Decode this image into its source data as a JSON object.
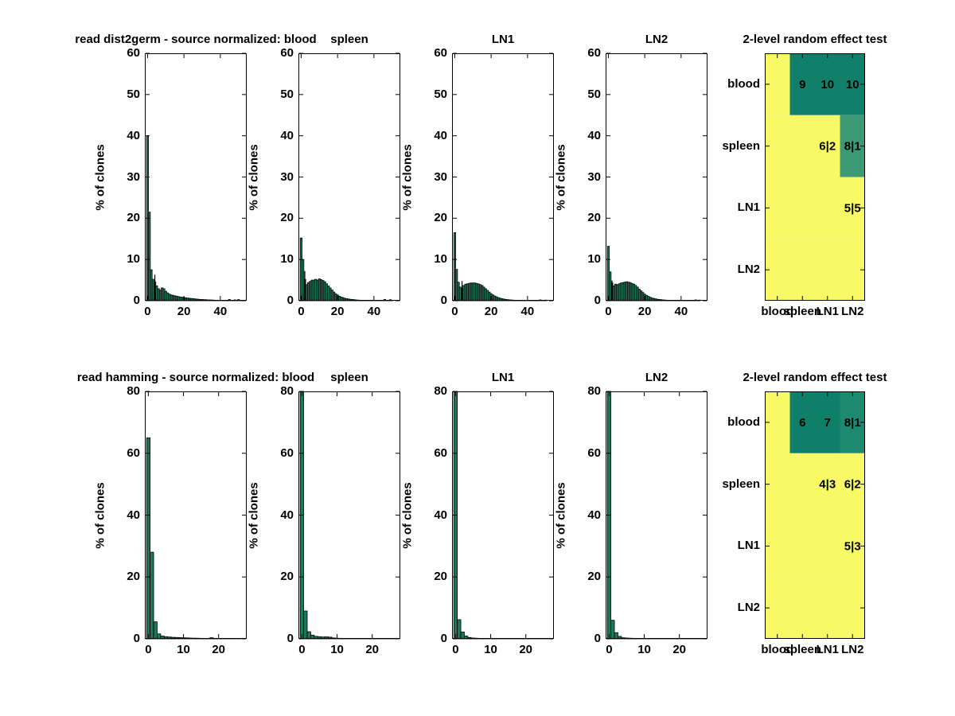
{
  "figure": {
    "background": "#ffffff",
    "bar_fill": "#1e7758",
    "bar_edge": "#000000",
    "axis_color": "#000000",
    "text_color": "#000000"
  },
  "chart_data": [
    {
      "type": "bar",
      "panel": "row1-blood",
      "title": "read  dist2germ - source normalized: blood",
      "ylabel": "% of clones",
      "ylim": [
        0,
        60
      ],
      "yticks": [
        0,
        10,
        20,
        30,
        40,
        50,
        60
      ],
      "xlim": [
        -1.5,
        54.5
      ],
      "xticks": [
        0,
        20,
        40
      ],
      "bin_width": 1,
      "grid": false,
      "values": [
        40,
        21.5,
        7.5,
        5.2,
        4.6,
        3.6,
        2.9,
        2.6,
        3.1,
        2.9,
        2.3,
        1.9,
        1.6,
        1.4,
        1.3,
        1.2,
        1.1,
        1.0,
        0.9,
        0.85,
        0.8,
        0.7,
        0.65,
        0.6,
        0.55,
        0.5,
        0.45,
        0.4,
        0.35,
        0.3,
        0.3,
        0.25,
        0.25,
        0.2,
        0.2,
        0.18,
        0.15,
        0.13,
        0.12,
        0.1,
        0.1,
        0.1,
        0.08,
        0.06,
        0.05,
        0.3,
        0.05,
        0.04,
        0.2,
        0.04,
        0.28,
        0.03,
        0.05
      ],
      "spike": {
        "x": 4,
        "v": 6.3
      }
    },
    {
      "type": "bar",
      "panel": "row1-spleen",
      "title": "spleen",
      "ylabel": "% of clones",
      "ylim": [
        0,
        60
      ],
      "yticks": [
        0,
        10,
        20,
        30,
        40,
        50,
        60
      ],
      "xlim": [
        -1.5,
        54.5
      ],
      "xticks": [
        0,
        20,
        40
      ],
      "bin_width": 1,
      "grid": false,
      "values": [
        15.2,
        10.0,
        5.2,
        3.9,
        4.4,
        4.7,
        5.0,
        5.0,
        5.2,
        5.0,
        5.3,
        5.1,
        4.9,
        4.6,
        4.1,
        3.6,
        3.1,
        2.6,
        2.1,
        1.7,
        1.4,
        1.1,
        0.9,
        0.75,
        0.6,
        0.5,
        0.42,
        0.35,
        0.3,
        0.25,
        0.2,
        0.16,
        0.13,
        0.11,
        0.1,
        0.09,
        0.08,
        0.07,
        0.06,
        0.06,
        0.05,
        0.05,
        0.05,
        0.04,
        0.04,
        0.04,
        0.3,
        0.04,
        0.04,
        0.25,
        0.04
      ],
      "spike": {
        "x": 2,
        "v": 7.2
      }
    },
    {
      "type": "bar",
      "panel": "row1-LN1",
      "title": "LN1",
      "ylabel": "% of clones",
      "ylim": [
        0,
        60
      ],
      "yticks": [
        0,
        10,
        20,
        30,
        40,
        50,
        60
      ],
      "xlim": [
        -1.5,
        54.5
      ],
      "xticks": [
        0,
        20,
        40
      ],
      "bin_width": 1,
      "grid": false,
      "values": [
        16.5,
        7.6,
        4.5,
        3.3,
        3.0,
        3.7,
        4.0,
        4.1,
        4.2,
        4.3,
        4.3,
        4.3,
        4.2,
        4.1,
        3.9,
        3.7,
        3.3,
        2.9,
        2.5,
        2.1,
        1.7,
        1.4,
        1.15,
        0.95,
        0.75,
        0.6,
        0.5,
        0.4,
        0.32,
        0.26,
        0.22,
        0.18,
        0.15,
        0.12,
        0.1,
        0.1,
        0.08,
        0.07,
        0.06,
        0.05,
        0.05,
        0.04,
        0.04,
        0.03,
        0.03,
        0.03,
        0.03,
        0.2,
        0.03,
        0.03,
        0.15
      ],
      "spike": {
        "x": 4,
        "v": 4.8
      }
    },
    {
      "type": "bar",
      "panel": "row1-LN2",
      "title": "LN2",
      "ylabel": "% of clones",
      "ylim": [
        0,
        60
      ],
      "yticks": [
        0,
        10,
        20,
        30,
        40,
        50,
        60
      ],
      "xlim": [
        -1.5,
        54.5
      ],
      "xticks": [
        0,
        20,
        40
      ],
      "bin_width": 1,
      "grid": false,
      "values": [
        13.2,
        7.0,
        4.3,
        3.6,
        4.0,
        3.9,
        4.1,
        4.3,
        4.4,
        4.5,
        4.6,
        4.5,
        4.4,
        4.2,
        4.0,
        3.7,
        3.3,
        2.8,
        2.4,
        2.0,
        1.6,
        1.3,
        1.05,
        0.85,
        0.65,
        0.55,
        0.45,
        0.35,
        0.3,
        0.25,
        0.2,
        0.16,
        0.13,
        0.1,
        0.09,
        0.08,
        0.06,
        0.06,
        0.05,
        0.04,
        0.04,
        0.04,
        0.03,
        0.03,
        0.03,
        0.03,
        0.03,
        0.03,
        0.2,
        0.03,
        0.15
      ],
      "spike": {
        "x": 2,
        "v": 4.9
      }
    },
    {
      "type": "heatmap",
      "panel": "row1-test",
      "title": "2-level random effect test",
      "row_labels": [
        "blood",
        "spleen",
        "LN1",
        "LN2"
      ],
      "col_labels": [
        "blood",
        "spleen",
        "LN1",
        "LN2"
      ],
      "palette": {
        "y": "#f7f966",
        "t": "#10806a",
        "m": "#3e9a75",
        "t2": "#10806a"
      },
      "cell_colors": [
        [
          "y",
          "t",
          "t",
          "t"
        ],
        [
          "y",
          "y",
          "y",
          "m"
        ],
        [
          "y",
          "y",
          "y",
          "y"
        ],
        [
          "y",
          "y",
          "y",
          "y"
        ]
      ],
      "cell_text": [
        [
          "",
          "9",
          "10",
          "10"
        ],
        [
          "",
          "",
          "6|2",
          "8|1"
        ],
        [
          "",
          "",
          "",
          "5|5"
        ],
        [
          "",
          "",
          "",
          ""
        ]
      ]
    },
    {
      "type": "bar",
      "panel": "row2-blood",
      "title": "read hamming - source normalized: blood",
      "ylabel": "% of clones",
      "ylim": [
        0,
        80
      ],
      "yticks": [
        0,
        20,
        40,
        60,
        80
      ],
      "xlim": [
        -1,
        28
      ],
      "xticks": [
        0,
        10,
        20
      ],
      "bin_width": 1,
      "grid": false,
      "values": [
        65,
        28,
        5.5,
        1.6,
        0.9,
        0.7,
        0.6,
        0.5,
        0.45,
        0.4,
        0.35,
        0.3,
        0.25,
        0.22,
        0.2,
        0.16,
        0.13,
        0.1,
        0.35,
        0.1,
        0.07,
        0.05,
        0.05,
        0.04,
        0.03,
        0.03,
        0.02
      ]
    },
    {
      "type": "bar",
      "panel": "row2-spleen",
      "title": "spleen",
      "ylabel": "% of clones",
      "ylim": [
        0,
        80
      ],
      "yticks": [
        0,
        20,
        40,
        60,
        80
      ],
      "xlim": [
        -1,
        28
      ],
      "xticks": [
        0,
        10,
        20
      ],
      "bin_width": 1,
      "grid": false,
      "values": [
        80,
        9,
        2.3,
        1.2,
        0.8,
        0.7,
        0.6,
        0.65,
        0.55,
        0.3,
        0.2,
        0.15,
        0.12,
        0.1,
        0.08,
        0.07,
        0.06,
        0.05,
        0.04,
        0.04,
        0.03,
        0.03,
        0.02,
        0.02,
        0.02,
        0.02,
        0.02
      ]
    },
    {
      "type": "bar",
      "panel": "row2-LN1",
      "title": "LN1",
      "ylabel": "% of clones",
      "ylim": [
        0,
        80
      ],
      "yticks": [
        0,
        20,
        40,
        60,
        80
      ],
      "xlim": [
        -1,
        28
      ],
      "xticks": [
        0,
        10,
        20
      ],
      "bin_width": 1,
      "grid": false,
      "values": [
        80,
        6.2,
        2.2,
        0.9,
        0.4,
        0.25,
        0.2,
        0.15,
        0.12,
        0.1,
        0.08,
        0.06,
        0.05,
        0.05,
        0.04,
        0.04,
        0.03,
        0.03,
        0.02,
        0.02,
        0.02,
        0.02,
        0.02,
        0.01,
        0.01,
        0.01,
        0.01
      ]
    },
    {
      "type": "bar",
      "panel": "row2-LN2",
      "title": "LN2",
      "ylabel": "% of clones",
      "ylim": [
        0,
        80
      ],
      "yticks": [
        0,
        20,
        40,
        60,
        80
      ],
      "xlim": [
        -1,
        28
      ],
      "xticks": [
        0,
        10,
        20
      ],
      "bin_width": 1,
      "grid": false,
      "values": [
        80,
        6.0,
        2.0,
        0.8,
        0.35,
        0.25,
        0.2,
        0.15,
        0.1,
        0.08,
        0.06,
        0.05,
        0.05,
        0.04,
        0.04,
        0.03,
        0.03,
        0.02,
        0.02,
        0.02,
        0.02,
        0.01,
        0.01,
        0.01,
        0.01,
        0.01,
        0.01
      ]
    },
    {
      "type": "heatmap",
      "panel": "row2-test",
      "title": "2-level random effect test",
      "row_labels": [
        "blood",
        "spleen",
        "LN1",
        "LN2"
      ],
      "col_labels": [
        "blood",
        "spleen",
        "LN1",
        "LN2"
      ],
      "palette": {
        "y": "#f7f966",
        "t": "#0f7f69",
        "m": "#3e9a75",
        "t2": "#1d8970"
      },
      "cell_colors": [
        [
          "y",
          "t",
          "t",
          "t2"
        ],
        [
          "y",
          "y",
          "y",
          "y"
        ],
        [
          "y",
          "y",
          "y",
          "y"
        ],
        [
          "y",
          "y",
          "y",
          "y"
        ]
      ],
      "cell_text": [
        [
          "",
          "6",
          "7",
          "8|1"
        ],
        [
          "",
          "",
          "4|3",
          "6|2"
        ],
        [
          "",
          "",
          "",
          "5|3"
        ],
        [
          "",
          "",
          "",
          ""
        ]
      ]
    }
  ]
}
